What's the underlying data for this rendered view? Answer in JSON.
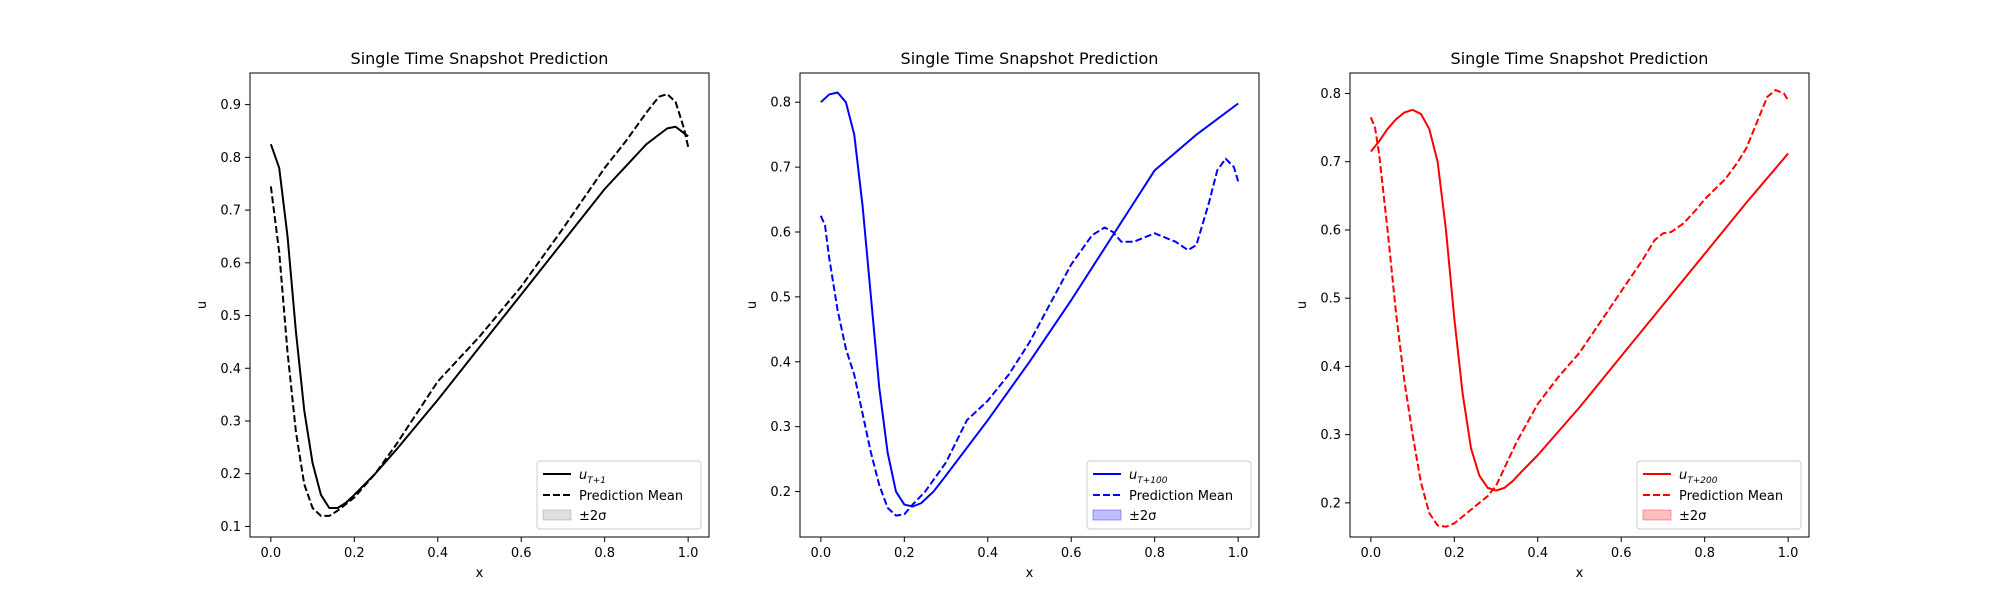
{
  "chart_data": [
    {
      "type": "line",
      "title": "Single Time Snapshot Prediction",
      "xlabel": "x",
      "ylabel": "u",
      "xlim": [
        -0.05,
        1.05
      ],
      "ylim": [
        0.08,
        0.96
      ],
      "xticks": [
        0.0,
        0.2,
        0.4,
        0.6,
        0.8,
        1.0
      ],
      "xtick_labels": [
        "0.0",
        "0.2",
        "0.4",
        "0.6",
        "0.8",
        "1.0"
      ],
      "yticks": [
        0.1,
        0.2,
        0.3,
        0.4,
        0.5,
        0.6,
        0.7,
        0.8,
        0.9
      ],
      "ytick_labels": [
        "0.1",
        "0.2",
        "0.3",
        "0.4",
        "0.5",
        "0.6",
        "0.7",
        "0.8",
        "0.9"
      ],
      "color": "#000000",
      "band_color": "#808080",
      "legend_position": "lower-right",
      "legend": {
        "true_base": "u",
        "true_sub": "T+1",
        "mean": "Prediction Mean",
        "band": "±2σ"
      },
      "series": [
        {
          "name": "u_T+1",
          "style": "solid",
          "x": [
            0.0,
            0.02,
            0.04,
            0.06,
            0.08,
            0.1,
            0.12,
            0.14,
            0.16,
            0.18,
            0.2,
            0.25,
            0.3,
            0.4,
            0.5,
            0.6,
            0.7,
            0.8,
            0.9,
            0.95,
            0.97,
            1.0
          ],
          "y": [
            0.825,
            0.78,
            0.65,
            0.47,
            0.32,
            0.22,
            0.16,
            0.135,
            0.135,
            0.145,
            0.16,
            0.2,
            0.245,
            0.34,
            0.44,
            0.54,
            0.64,
            0.74,
            0.825,
            0.855,
            0.858,
            0.84
          ]
        },
        {
          "name": "Prediction Mean",
          "style": "dashed",
          "x": [
            0.0,
            0.02,
            0.04,
            0.06,
            0.08,
            0.1,
            0.12,
            0.14,
            0.16,
            0.2,
            0.25,
            0.3,
            0.35,
            0.4,
            0.5,
            0.6,
            0.7,
            0.8,
            0.85,
            0.9,
            0.93,
            0.95,
            0.97,
            0.99,
            1.0
          ],
          "y": [
            0.745,
            0.62,
            0.43,
            0.28,
            0.18,
            0.135,
            0.12,
            0.12,
            0.13,
            0.155,
            0.2,
            0.255,
            0.315,
            0.375,
            0.46,
            0.555,
            0.665,
            0.78,
            0.83,
            0.885,
            0.915,
            0.92,
            0.905,
            0.855,
            0.82
          ]
        }
      ]
    },
    {
      "type": "line",
      "title": "Single Time Snapshot Prediction",
      "xlabel": "x",
      "ylabel": "u",
      "xlim": [
        -0.05,
        1.05
      ],
      "ylim": [
        0.13,
        0.845
      ],
      "xticks": [
        0.0,
        0.2,
        0.4,
        0.6,
        0.8,
        1.0
      ],
      "xtick_labels": [
        "0.0",
        "0.2",
        "0.4",
        "0.6",
        "0.8",
        "1.0"
      ],
      "yticks": [
        0.2,
        0.3,
        0.4,
        0.5,
        0.6,
        0.7,
        0.8
      ],
      "ytick_labels": [
        "0.2",
        "0.3",
        "0.4",
        "0.5",
        "0.6",
        "0.7",
        "0.8"
      ],
      "color": "#0000ff",
      "band_color": "#0000ff",
      "legend_position": "lower-right",
      "legend": {
        "true_base": "u",
        "true_sub": "T+100",
        "mean": "Prediction Mean",
        "band": "±2σ"
      },
      "series": [
        {
          "name": "u_T+100",
          "style": "solid",
          "x": [
            0.0,
            0.02,
            0.04,
            0.06,
            0.08,
            0.1,
            0.12,
            0.14,
            0.16,
            0.18,
            0.2,
            0.22,
            0.24,
            0.27,
            0.3,
            0.4,
            0.5,
            0.6,
            0.7,
            0.8,
            0.9,
            1.0
          ],
          "y": [
            0.8,
            0.812,
            0.815,
            0.8,
            0.75,
            0.64,
            0.5,
            0.36,
            0.26,
            0.2,
            0.18,
            0.177,
            0.182,
            0.2,
            0.225,
            0.31,
            0.4,
            0.495,
            0.595,
            0.695,
            0.75,
            0.798
          ]
        },
        {
          "name": "Prediction Mean",
          "style": "dashed",
          "x": [
            0.0,
            0.01,
            0.02,
            0.04,
            0.06,
            0.08,
            0.1,
            0.12,
            0.14,
            0.16,
            0.18,
            0.2,
            0.22,
            0.25,
            0.3,
            0.35,
            0.4,
            0.45,
            0.5,
            0.55,
            0.6,
            0.65,
            0.68,
            0.7,
            0.72,
            0.75,
            0.8,
            0.85,
            0.88,
            0.9,
            0.93,
            0.95,
            0.97,
            0.99,
            1.0
          ],
          "y": [
            0.625,
            0.61,
            0.56,
            0.48,
            0.42,
            0.38,
            0.32,
            0.26,
            0.21,
            0.175,
            0.163,
            0.165,
            0.18,
            0.2,
            0.245,
            0.31,
            0.34,
            0.38,
            0.43,
            0.49,
            0.55,
            0.595,
            0.607,
            0.6,
            0.585,
            0.585,
            0.598,
            0.585,
            0.572,
            0.58,
            0.645,
            0.695,
            0.713,
            0.7,
            0.678
          ]
        }
      ]
    },
    {
      "type": "line",
      "title": "Single Time Snapshot Prediction",
      "xlabel": "x",
      "ylabel": "u",
      "xlim": [
        -0.05,
        1.05
      ],
      "ylim": [
        0.15,
        0.83
      ],
      "xticks": [
        0.0,
        0.2,
        0.4,
        0.6,
        0.8,
        1.0
      ],
      "xtick_labels": [
        "0.0",
        "0.2",
        "0.4",
        "0.6",
        "0.8",
        "1.0"
      ],
      "yticks": [
        0.2,
        0.3,
        0.4,
        0.5,
        0.6,
        0.7,
        0.8
      ],
      "ytick_labels": [
        "0.2",
        "0.3",
        "0.4",
        "0.5",
        "0.6",
        "0.7",
        "0.8"
      ],
      "color": "#ff0000",
      "band_color": "#ff0000",
      "legend_position": "lower-right",
      "legend": {
        "true_base": "u",
        "true_sub": "T+200",
        "mean": "Prediction Mean",
        "band": "±2σ"
      },
      "series": [
        {
          "name": "u_T+200",
          "style": "solid",
          "x": [
            0.0,
            0.02,
            0.04,
            0.06,
            0.08,
            0.1,
            0.12,
            0.14,
            0.16,
            0.18,
            0.2,
            0.22,
            0.24,
            0.26,
            0.28,
            0.3,
            0.32,
            0.34,
            0.36,
            0.4,
            0.5,
            0.6,
            0.7,
            0.8,
            0.9,
            1.0
          ],
          "y": [
            0.715,
            0.73,
            0.748,
            0.762,
            0.772,
            0.776,
            0.77,
            0.748,
            0.7,
            0.6,
            0.47,
            0.36,
            0.28,
            0.24,
            0.222,
            0.218,
            0.222,
            0.232,
            0.245,
            0.27,
            0.34,
            0.415,
            0.49,
            0.565,
            0.64,
            0.712
          ]
        },
        {
          "name": "Prediction Mean",
          "style": "dashed",
          "x": [
            0.0,
            0.01,
            0.02,
            0.04,
            0.06,
            0.08,
            0.1,
            0.12,
            0.14,
            0.16,
            0.18,
            0.2,
            0.22,
            0.25,
            0.28,
            0.3,
            0.35,
            0.4,
            0.45,
            0.5,
            0.55,
            0.6,
            0.65,
            0.68,
            0.7,
            0.72,
            0.75,
            0.78,
            0.8,
            0.85,
            0.88,
            0.9,
            0.92,
            0.95,
            0.97,
            0.99,
            1.0
          ],
          "y": [
            0.765,
            0.75,
            0.71,
            0.6,
            0.48,
            0.38,
            0.3,
            0.23,
            0.185,
            0.167,
            0.165,
            0.17,
            0.18,
            0.195,
            0.21,
            0.225,
            0.29,
            0.345,
            0.385,
            0.42,
            0.465,
            0.51,
            0.555,
            0.585,
            0.595,
            0.597,
            0.61,
            0.63,
            0.645,
            0.675,
            0.7,
            0.72,
            0.75,
            0.795,
            0.805,
            0.8,
            0.79
          ]
        }
      ]
    }
  ]
}
